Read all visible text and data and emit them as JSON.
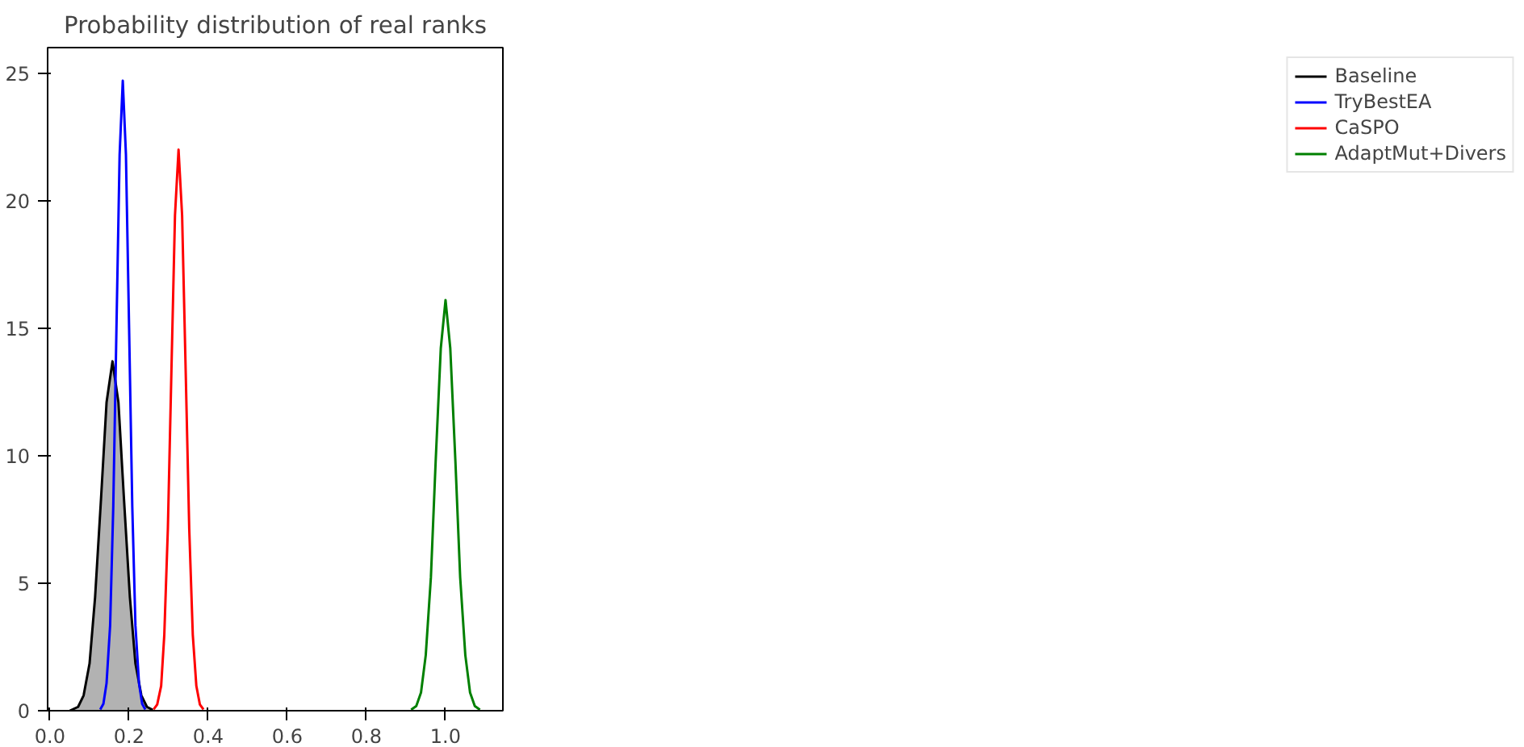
{
  "chart_data": {
    "type": "line",
    "title": "Probability distribution of real ranks",
    "xlim": [
      -0.006,
      1.145
    ],
    "ylim": [
      0,
      26
    ],
    "xticks": [
      {
        "value": 0,
        "label": "0.0"
      },
      {
        "value": 0.2,
        "label": "0.2"
      },
      {
        "value": 0.4,
        "label": "0.4"
      },
      {
        "value": 0.6,
        "label": "0.6"
      },
      {
        "value": 0.8,
        "label": "0.8"
      },
      {
        "value": 1,
        "label": "1.0"
      }
    ],
    "yticks": [
      0,
      5,
      10,
      15,
      20,
      25
    ],
    "grid": false,
    "legend": "right",
    "marker": "none",
    "line_style": "solid",
    "series": [
      {
        "name": "Baseline",
        "type": "area",
        "color": "#000000",
        "x": [
          0.05,
          0.071,
          0.085,
          0.1,
          0.114,
          0.129,
          0.143,
          0.158,
          0.173,
          0.187,
          0.202,
          0.216,
          0.231,
          0.245,
          0.26
        ],
        "values": [
          0.0,
          0.15,
          0.6,
          1.85,
          4.45,
          8.31,
          12.09,
          13.7,
          12.09,
          8.31,
          4.45,
          1.85,
          0.6,
          0.15,
          0.03
        ]
      },
      {
        "name": "TryBestEA",
        "color": "#0000ff",
        "x": [
          0.127,
          0.135,
          0.143,
          0.152,
          0.16,
          0.168,
          0.176,
          0.184,
          0.192,
          0.2,
          0.208,
          0.216,
          0.225,
          0.233,
          0.241
        ],
        "values": [
          0.05,
          0.27,
          1.08,
          3.34,
          8.02,
          14.98,
          21.8,
          24.7,
          21.8,
          14.98,
          8.02,
          3.34,
          1.08,
          0.27,
          0.05
        ]
      },
      {
        "name": "CaSPO",
        "color": "#ff0000",
        "x": [
          0.262,
          0.271,
          0.281,
          0.289,
          0.298,
          0.307,
          0.316,
          0.325,
          0.334,
          0.343,
          0.352,
          0.361,
          0.37,
          0.379,
          0.388
        ],
        "values": [
          0.05,
          0.24,
          0.97,
          2.98,
          7.14,
          13.34,
          19.42,
          22.0,
          19.42,
          13.34,
          7.14,
          2.98,
          0.97,
          0.24,
          0.05
        ]
      },
      {
        "name": "AdaptMut+Divers",
        "color": "#008000",
        "x": [
          0.913,
          0.926,
          0.938,
          0.95,
          0.963,
          0.975,
          0.988,
          1.0,
          1.012,
          1.025,
          1.037,
          1.05,
          1.062,
          1.074,
          1.087
        ],
        "values": [
          0.04,
          0.18,
          0.71,
          2.18,
          5.23,
          9.76,
          14.21,
          16.1,
          14.21,
          9.76,
          5.23,
          2.18,
          0.71,
          0.18,
          0.04
        ]
      }
    ]
  }
}
